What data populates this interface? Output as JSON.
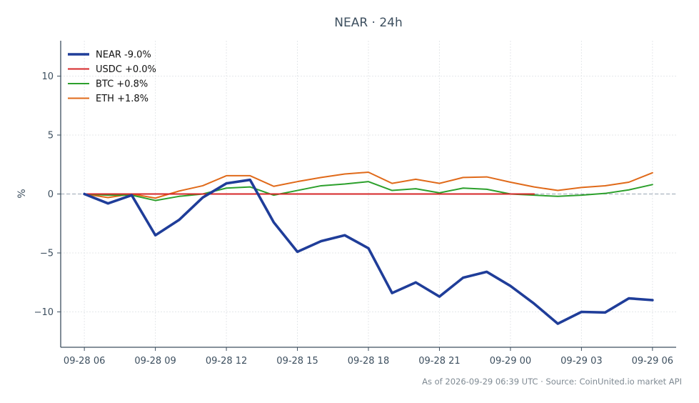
{
  "chart_data": {
    "type": "line",
    "title": "NEAR · 24h",
    "ylabel": "%",
    "xlabel": "",
    "ylim": [
      -13,
      13
    ],
    "yticks": [
      10,
      5,
      0,
      -5,
      -10
    ],
    "ytick_labels": [
      "10",
      "5",
      "0",
      "−5",
      "−10"
    ],
    "xlim": [
      "2026-09-28 05:00",
      "2026-09-29 07:00"
    ],
    "xticks": [
      "2026-09-28 06:00",
      "2026-09-28 09:00",
      "2026-09-28 12:00",
      "2026-09-28 15:00",
      "2026-09-28 18:00",
      "2026-09-28 21:00",
      "2026-09-29 00:00",
      "2026-09-29 03:00",
      "2026-09-29 06:00"
    ],
    "xtick_labels": [
      "09-28 06",
      "09-28 09",
      "09-28 12",
      "09-28 15",
      "09-28 18",
      "09-28 21",
      "09-29 00",
      "09-29 03",
      "09-29 06"
    ],
    "grid": true,
    "zero_reference_line": true,
    "legend_position": "top-left",
    "series": [
      {
        "name": "NEAR -9.0%",
        "color": "#1f3d99",
        "line_style": "thick",
        "x": [
          "2026-09-28 06:00",
          "2026-09-28 07:00",
          "2026-09-28 08:00",
          "2026-09-28 09:00",
          "2026-09-28 10:00",
          "2026-09-28 11:00",
          "2026-09-28 12:00",
          "2026-09-28 13:00",
          "2026-09-28 14:00",
          "2026-09-28 15:00",
          "2026-09-28 16:00",
          "2026-09-28 17:00",
          "2026-09-28 18:00",
          "2026-09-28 19:00",
          "2026-09-28 20:00",
          "2026-09-28 21:00",
          "2026-09-28 22:00",
          "2026-09-28 23:00",
          "2026-09-29 00:00",
          "2026-09-29 01:00",
          "2026-09-29 02:00",
          "2026-09-29 03:00",
          "2026-09-29 04:00",
          "2026-09-29 05:00",
          "2026-09-29 06:00"
        ],
        "values": [
          0.0,
          -0.8,
          -0.1,
          -3.5,
          -2.2,
          -0.3,
          0.9,
          1.2,
          -2.4,
          -4.9,
          -4.0,
          -3.5,
          -4.6,
          -8.4,
          -7.5,
          -8.7,
          -7.1,
          -6.6,
          -7.8,
          -9.3,
          -11.0,
          -10.0,
          -10.05,
          -8.85,
          -9.0
        ]
      },
      {
        "name": "USDC +0.0%",
        "color": "#d62728",
        "line_style": "normal",
        "x": [
          "2026-09-28 06:00",
          "2026-09-28 07:00",
          "2026-09-28 08:00",
          "2026-09-28 09:00",
          "2026-09-28 10:00",
          "2026-09-28 11:00",
          "2026-09-28 12:00",
          "2026-09-28 13:00",
          "2026-09-28 14:00",
          "2026-09-28 15:00",
          "2026-09-28 16:00",
          "2026-09-28 17:00",
          "2026-09-28 18:00",
          "2026-09-28 19:00",
          "2026-09-28 20:00",
          "2026-09-28 21:00",
          "2026-09-28 22:00",
          "2026-09-28 23:00",
          "2026-09-29 00:00",
          "2026-09-29 01:00"
        ],
        "values": [
          0.0,
          0.0,
          0.0,
          0.0,
          0.0,
          0.0,
          0.0,
          0.0,
          0.0,
          0.0,
          0.0,
          0.0,
          0.0,
          0.0,
          0.0,
          0.0,
          0.0,
          0.0,
          0.0,
          0.0
        ]
      },
      {
        "name": "BTC +0.8%",
        "color": "#2ca02c",
        "line_style": "normal",
        "x": [
          "2026-09-28 06:00",
          "2026-09-28 07:00",
          "2026-09-28 08:00",
          "2026-09-28 09:00",
          "2026-09-28 10:00",
          "2026-09-28 11:00",
          "2026-09-28 12:00",
          "2026-09-28 13:00",
          "2026-09-28 14:00",
          "2026-09-28 15:00",
          "2026-09-28 16:00",
          "2026-09-28 17:00",
          "2026-09-28 18:00",
          "2026-09-28 19:00",
          "2026-09-28 20:00",
          "2026-09-28 21:00",
          "2026-09-28 22:00",
          "2026-09-28 23:00",
          "2026-09-29 00:00",
          "2026-09-29 01:00",
          "2026-09-29 02:00",
          "2026-09-29 03:00",
          "2026-09-29 04:00",
          "2026-09-29 05:00",
          "2026-09-29 06:00"
        ],
        "values": [
          0.0,
          -0.1,
          -0.1,
          -0.55,
          -0.2,
          0.0,
          0.5,
          0.6,
          -0.1,
          0.3,
          0.7,
          0.85,
          1.05,
          0.3,
          0.45,
          0.1,
          0.5,
          0.4,
          0.0,
          -0.1,
          -0.2,
          -0.1,
          0.05,
          0.35,
          0.8
        ]
      },
      {
        "name": "ETH +1.8%",
        "color": "#e06a1a",
        "line_style": "normal",
        "x": [
          "2026-09-28 06:00",
          "2026-09-28 07:00",
          "2026-09-28 08:00",
          "2026-09-28 09:00",
          "2026-09-28 10:00",
          "2026-09-28 11:00",
          "2026-09-28 12:00",
          "2026-09-28 13:00",
          "2026-09-28 14:00",
          "2026-09-28 15:00",
          "2026-09-28 16:00",
          "2026-09-28 17:00",
          "2026-09-28 18:00",
          "2026-09-28 19:00",
          "2026-09-28 20:00",
          "2026-09-28 21:00",
          "2026-09-28 22:00",
          "2026-09-28 23:00",
          "2026-09-29 00:00",
          "2026-09-29 01:00",
          "2026-09-29 02:00",
          "2026-09-29 03:00",
          "2026-09-29 04:00",
          "2026-09-29 05:00",
          "2026-09-29 06:00"
        ],
        "values": [
          0.0,
          -0.3,
          0.0,
          -0.35,
          0.25,
          0.7,
          1.55,
          1.55,
          0.65,
          1.05,
          1.4,
          1.7,
          1.85,
          0.9,
          1.25,
          0.9,
          1.4,
          1.45,
          1.0,
          0.6,
          0.3,
          0.55,
          0.7,
          1.0,
          1.8
        ]
      }
    ]
  },
  "footer": "As of 2026-09-29 06:39 UTC · Source: CoinUnited.io market API"
}
